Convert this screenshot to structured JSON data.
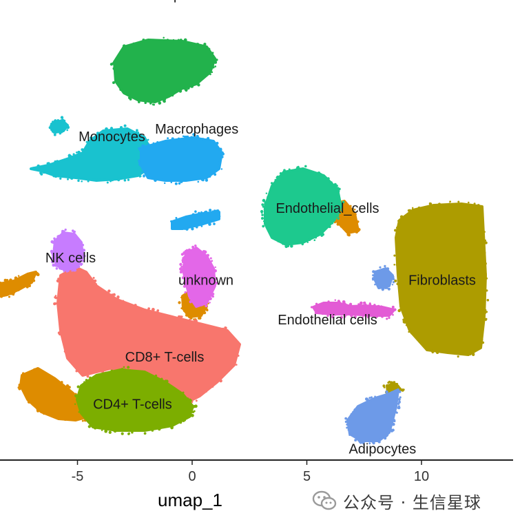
{
  "chart_data": {
    "type": "scatter",
    "title": "",
    "xlabel": "umap_1",
    "ylabel": "",
    "xlim": [
      -8.4,
      14.0
    ],
    "ylim": [
      -12.4,
      7.8
    ],
    "xticks": [
      -5,
      0,
      5,
      10
    ],
    "xtick_labels": [
      "-5",
      "0",
      "5",
      "10"
    ],
    "grid": false,
    "legend": "none",
    "clusters": [
      {
        "label": "Neutrophils",
        "color": "#22b24c",
        "center": [
          -2.2,
          6.0
        ],
        "label_pos": [
          -1.1,
          6.4
        ]
      },
      {
        "label": "Monocytes",
        "color": "#19c2cf",
        "center": [
          -3.4,
          1.6
        ],
        "label_pos": [
          -3.5,
          0.7
        ]
      },
      {
        "label": "Macrophages",
        "color": "#22a9f0",
        "center": [
          -0.6,
          1.3
        ],
        "label_pos": [
          0.2,
          1.0
        ]
      },
      {
        "label": "Endothelial_cells",
        "color": "#1dc98e",
        "center": [
          5.0,
          -1.6
        ],
        "label_pos": [
          5.9,
          -2.2
        ]
      },
      {
        "label": "NK cells",
        "color": "#c77cff",
        "center": [
          -5.8,
          -4.1
        ],
        "label_pos": [
          -5.3,
          -4.2
        ]
      },
      {
        "label": "unknown",
        "color": "#e367e8",
        "center": [
          0.0,
          -5.0
        ],
        "label_pos": [
          0.6,
          -5.1
        ]
      },
      {
        "label": "Fibroblasts",
        "color": "#ad9c00",
        "center": [
          10.4,
          -5.0
        ],
        "label_pos": [
          10.9,
          -5.1
        ]
      },
      {
        "label": "Endothelial cells",
        "color": "#e35bd5",
        "center": [
          6.3,
          -6.6
        ],
        "label_pos": [
          5.9,
          -6.7
        ]
      },
      {
        "label": "CD8+ T-cells",
        "color": "#f8766d",
        "center": [
          -1.7,
          -7.6
        ],
        "label_pos": [
          -1.2,
          -8.2
        ]
      },
      {
        "label": "CD4+ T-cells",
        "color": "#7cae00",
        "center": [
          -3.0,
          -10.1
        ],
        "label_pos": [
          -2.6,
          -10.1
        ]
      },
      {
        "label": "Adipocytes",
        "color": "#6d9ae8",
        "center": [
          8.1,
          -11.8
        ],
        "label_pos": [
          8.3,
          -11.9
        ]
      }
    ],
    "extra_point_colors": [
      "#de8c00",
      "#6d9ae8"
    ]
  },
  "watermark": {
    "text": "公众号 · 生信星球",
    "icon": "wechat-icon"
  }
}
